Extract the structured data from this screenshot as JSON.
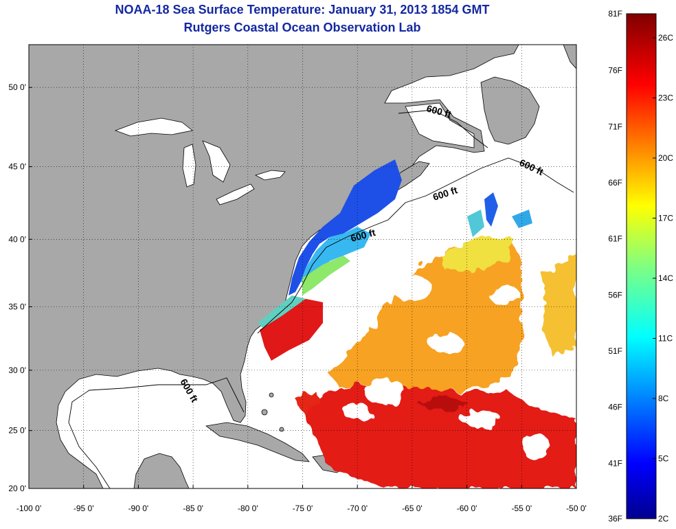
{
  "title": "NOAA-18 Sea Surface Temperature:  January 31, 2013 1854 GMT",
  "subtitle": "Rutgers Coastal Ocean Observation Lab",
  "map": {
    "lon_range": [
      -100,
      -50
    ],
    "lat_range": [
      20,
      52.5
    ],
    "lon_ticks": [
      -100,
      -95,
      -90,
      -85,
      -80,
      -75,
      -70,
      -65,
      -60,
      -55,
      -50
    ],
    "lon_labels": [
      "-100 0'",
      "-95 0'",
      "-90 0'",
      "-85 0'",
      "-80 0'",
      "-75 0'",
      "-70 0'",
      "-65 0'",
      "-60 0'",
      "-55 0'",
      "-50 0'"
    ],
    "lat_ticks": [
      20,
      25,
      30,
      35,
      40,
      45,
      50
    ],
    "lat_labels": [
      "20 0'",
      "25 0'",
      "30 0'",
      "35 0'",
      "40 0'",
      "45 0'",
      "50 0'"
    ],
    "land_color": "#a8a8a8",
    "grid": "dotted",
    "contour_labels": [
      "600 ft",
      "600 ft",
      "600 ft",
      "600 ft",
      "600 ft"
    ]
  },
  "colorbar": {
    "fahrenheit_labels": [
      "81F",
      "76F",
      "71F",
      "66F",
      "61F",
      "56F",
      "51F",
      "46F",
      "41F",
      "36F"
    ],
    "celsius_labels": [
      "26C",
      "23C",
      "20C",
      "17C",
      "14C",
      "11C",
      "8C",
      "5C",
      "2C"
    ],
    "range_f": [
      36,
      81
    ],
    "range_c": [
      2,
      27.2
    ]
  }
}
